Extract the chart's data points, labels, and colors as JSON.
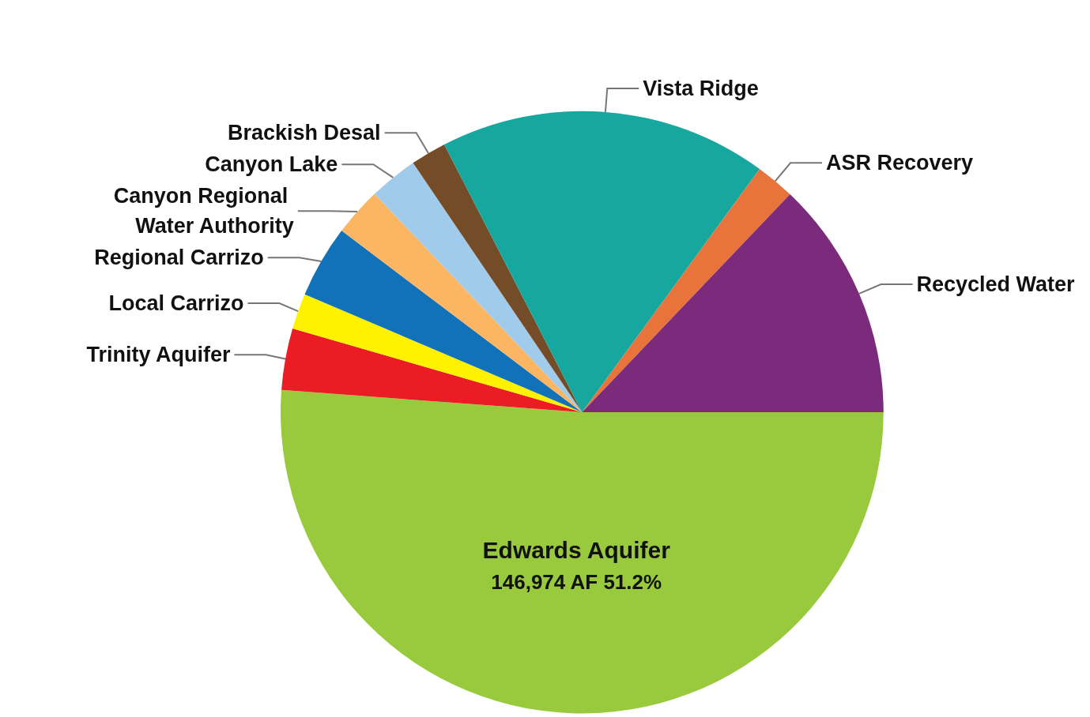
{
  "chart_data": {
    "type": "pie",
    "categories": [
      "Edwards Aquifer",
      "Trinity Aquifer",
      "Local Carrizo",
      "Regional Carrizo",
      "Canyon Regional Water Authority",
      "Canyon Lake",
      "Brackish Desal",
      "Vista Ridge",
      "ASR Recovery",
      "Recycled Water"
    ],
    "values": [
      146974,
      9500,
      5500,
      11200,
      7500,
      7500,
      5500,
      50500,
      6000,
      37000
    ],
    "colors": [
      "#99c93c",
      "#ec1c24",
      "#fff200",
      "#1172ba",
      "#fbb563",
      "#a1cbeb",
      "#754c28",
      "#16a79e",
      "#e8743b",
      "#7b2a7c"
    ],
    "value_labels": [
      "146,974 AF 51.2%",
      null,
      null,
      null,
      null,
      null,
      null,
      null,
      null,
      null
    ],
    "legend": false
  }
}
